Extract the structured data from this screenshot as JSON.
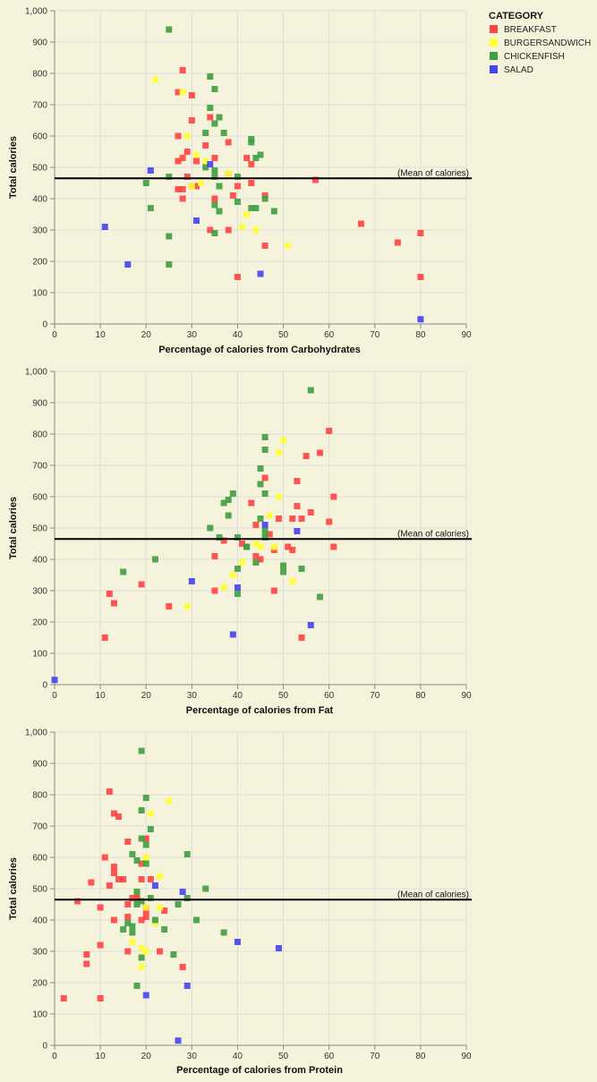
{
  "legend": {
    "title": "CATEGORY",
    "items": [
      {
        "label": "BREAKFAST",
        "color": "#ff4444"
      },
      {
        "label": "BURGERSANDWICH",
        "color": "#ffff33"
      },
      {
        "label": "CHICKENFISH",
        "color": "#3f9f3f"
      },
      {
        "label": "SALAD",
        "color": "#4444ee"
      }
    ]
  },
  "chart_data": [
    {
      "type": "scatter",
      "xlabel": "Percentage of calories from Carbohydrates",
      "ylabel": "Total calories",
      "xlim": [
        0,
        90
      ],
      "ylim": [
        0,
        1000
      ],
      "x_ticks": [
        "0",
        "10",
        "20",
        "30",
        "40",
        "50",
        "60",
        "70",
        "80",
        "90"
      ],
      "y_ticks": [
        "0",
        "100",
        "200",
        "300",
        "400",
        "500",
        "600",
        "700",
        "800",
        "900",
        "1,000"
      ],
      "grid": true,
      "mean_line": {
        "y": 465,
        "label": "(Mean of calories)"
      },
      "series": [
        {
          "name": "BREAKFAST",
          "points": [
            [
              28,
              810
            ],
            [
              27,
              740
            ],
            [
              30,
              730
            ],
            [
              34,
              660
            ],
            [
              30,
              650
            ],
            [
              27,
              600
            ],
            [
              38,
              580
            ],
            [
              33,
              570
            ],
            [
              29,
              550
            ],
            [
              42,
              530
            ],
            [
              31,
              520
            ],
            [
              28,
              530
            ],
            [
              27,
              520
            ],
            [
              35,
              530
            ],
            [
              43,
              510
            ],
            [
              38,
              480
            ],
            [
              29,
              470
            ],
            [
              27,
              430
            ],
            [
              28,
              430
            ],
            [
              31,
              440
            ],
            [
              30,
              440
            ],
            [
              46,
              410
            ],
            [
              39,
              410
            ],
            [
              28,
              400
            ],
            [
              35,
              400
            ],
            [
              40,
              440
            ],
            [
              43,
              450
            ],
            [
              57,
              460
            ],
            [
              38,
              300
            ],
            [
              34,
              300
            ],
            [
              46,
              250
            ],
            [
              67,
              320
            ],
            [
              75,
              260
            ],
            [
              40,
              150
            ],
            [
              80,
              290
            ],
            [
              80,
              150
            ]
          ]
        },
        {
          "name": "BURGERSANDWICH",
          "points": [
            [
              22,
              780
            ],
            [
              28,
              740
            ],
            [
              29,
              600
            ],
            [
              31,
              540
            ],
            [
              33,
              520
            ],
            [
              38,
              480
            ],
            [
              32,
              450
            ],
            [
              30,
              440
            ],
            [
              42,
              350
            ],
            [
              44,
              300
            ],
            [
              51,
              250
            ],
            [
              41,
              310
            ]
          ]
        },
        {
          "name": "CHICKENFISH",
          "points": [
            [
              25,
              940
            ],
            [
              34,
              790
            ],
            [
              35,
              750
            ],
            [
              34,
              690
            ],
            [
              36,
              660
            ],
            [
              35,
              640
            ],
            [
              37,
              610
            ],
            [
              33,
              610
            ],
            [
              43,
              590
            ],
            [
              43,
              580
            ],
            [
              45,
              540
            ],
            [
              44,
              530
            ],
            [
              33,
              500
            ],
            [
              35,
              490
            ],
            [
              35,
              470
            ],
            [
              25,
              470
            ],
            [
              36,
              440
            ],
            [
              40,
              470
            ],
            [
              20,
              450
            ],
            [
              21,
              370
            ],
            [
              35,
              380
            ],
            [
              36,
              360
            ],
            [
              40,
              390
            ],
            [
              43,
              370
            ],
            [
              44,
              370
            ],
            [
              46,
              400
            ],
            [
              48,
              360
            ],
            [
              35,
              290
            ],
            [
              25,
              280
            ],
            [
              25,
              190
            ]
          ]
        },
        {
          "name": "SALAD",
          "points": [
            [
              21,
              490
            ],
            [
              34,
              510
            ],
            [
              31,
              330
            ],
            [
              11,
              310
            ],
            [
              16,
              190
            ],
            [
              45,
              160
            ],
            [
              80,
              15
            ]
          ]
        }
      ]
    },
    {
      "type": "scatter",
      "xlabel": "Percentage of calories from Fat",
      "ylabel": "Total calories",
      "xlim": [
        0,
        90
      ],
      "ylim": [
        0,
        1000
      ],
      "x_ticks": [
        "0",
        "10",
        "20",
        "30",
        "40",
        "50",
        "60",
        "70",
        "80",
        "90"
      ],
      "y_ticks": [
        "0",
        "100",
        "200",
        "300",
        "400",
        "500",
        "600",
        "700",
        "800",
        "900",
        "1,000"
      ],
      "grid": true,
      "mean_line": {
        "y": 465,
        "label": "(Mean of calories)"
      },
      "series": [
        {
          "name": "BREAKFAST",
          "points": [
            [
              60,
              810
            ],
            [
              58,
              740
            ],
            [
              55,
              730
            ],
            [
              46,
              660
            ],
            [
              53,
              650
            ],
            [
              61,
              600
            ],
            [
              43,
              580
            ],
            [
              53,
              570
            ],
            [
              56,
              550
            ],
            [
              49,
              530
            ],
            [
              52,
              530
            ],
            [
              54,
              530
            ],
            [
              60,
              520
            ],
            [
              44,
              510
            ],
            [
              47,
              480
            ],
            [
              51,
              440
            ],
            [
              52,
              430
            ],
            [
              61,
              440
            ],
            [
              48,
              430
            ],
            [
              44,
              410
            ],
            [
              41,
              450
            ],
            [
              37,
              460
            ],
            [
              45,
              400
            ],
            [
              54,
              150
            ],
            [
              48,
              300
            ],
            [
              35,
              410
            ],
            [
              19,
              320
            ],
            [
              12,
              290
            ],
            [
              13,
              260
            ],
            [
              25,
              250
            ],
            [
              11,
              150
            ],
            [
              35,
              300
            ]
          ]
        },
        {
          "name": "BURGERSANDWICH",
          "points": [
            [
              50,
              780
            ],
            [
              49,
              740
            ],
            [
              49,
              600
            ],
            [
              47,
              540
            ],
            [
              45,
              440
            ],
            [
              44,
              450
            ],
            [
              41,
              390
            ],
            [
              39,
              350
            ],
            [
              37,
              310
            ],
            [
              29,
              250
            ],
            [
              52,
              330
            ],
            [
              48,
              440
            ]
          ]
        },
        {
          "name": "CHICKENFISH",
          "points": [
            [
              56,
              940
            ],
            [
              46,
              790
            ],
            [
              46,
              750
            ],
            [
              45,
              690
            ],
            [
              45,
              640
            ],
            [
              46,
              610
            ],
            [
              39,
              610
            ],
            [
              38,
              590
            ],
            [
              37,
              580
            ],
            [
              38,
              540
            ],
            [
              45,
              530
            ],
            [
              34,
              500
            ],
            [
              46,
              490
            ],
            [
              46,
              470
            ],
            [
              40,
              470
            ],
            [
              36,
              470
            ],
            [
              42,
              440
            ],
            [
              40,
              370
            ],
            [
              44,
              390
            ],
            [
              50,
              380
            ],
            [
              50,
              360
            ],
            [
              54,
              370
            ],
            [
              22,
              400
            ],
            [
              15,
              360
            ],
            [
              40,
              290
            ],
            [
              58,
              280
            ],
            [
              42,
              440
            ]
          ]
        },
        {
          "name": "SALAD",
          "points": [
            [
              46,
              510
            ],
            [
              53,
              490
            ],
            [
              30,
              330
            ],
            [
              40,
              310
            ],
            [
              56,
              190
            ],
            [
              39,
              160
            ],
            [
              0,
              15
            ]
          ]
        }
      ]
    },
    {
      "type": "scatter",
      "xlabel": "Percentage of calories from Protein",
      "ylabel": "Total calories",
      "xlim": [
        0,
        90
      ],
      "ylim": [
        0,
        1000
      ],
      "x_ticks": [
        "0",
        "10",
        "20",
        "30",
        "40",
        "50",
        "60",
        "70",
        "80",
        "90"
      ],
      "y_ticks": [
        "0",
        "100",
        "200",
        "300",
        "400",
        "500",
        "600",
        "700",
        "800",
        "900",
        "1,000"
      ],
      "grid": true,
      "mean_line": {
        "y": 465,
        "label": "(Mean of calories)"
      },
      "series": [
        {
          "name": "BREAKFAST",
          "points": [
            [
              12,
              810
            ],
            [
              13,
              740
            ],
            [
              14,
              730
            ],
            [
              20,
              660
            ],
            [
              16,
              650
            ],
            [
              11,
              600
            ],
            [
              8,
              520
            ],
            [
              13,
              570
            ],
            [
              13,
              550
            ],
            [
              15,
              530
            ],
            [
              14,
              530
            ],
            [
              12,
              510
            ],
            [
              19,
              580
            ],
            [
              19,
              530
            ],
            [
              21,
              530
            ],
            [
              18,
              470
            ],
            [
              17,
              470
            ],
            [
              16,
              450
            ],
            [
              10,
              440
            ],
            [
              13,
              400
            ],
            [
              5,
              460
            ],
            [
              16,
              410
            ],
            [
              19,
              400
            ],
            [
              20,
              410
            ],
            [
              20,
              430
            ],
            [
              24,
              430
            ],
            [
              10,
              320
            ],
            [
              16,
              300
            ],
            [
              23,
              300
            ],
            [
              7,
              290
            ],
            [
              7,
              260
            ],
            [
              28,
              250
            ],
            [
              2,
              150
            ],
            [
              10,
              150
            ],
            [
              18,
              480
            ],
            [
              20,
              440
            ]
          ]
        },
        {
          "name": "BURGERSANDWICH",
          "points": [
            [
              25,
              780
            ],
            [
              21,
              740
            ],
            [
              20,
              600
            ],
            [
              23,
              540
            ],
            [
              18,
              490
            ],
            [
              20,
              440
            ],
            [
              23,
              440
            ],
            [
              22,
              390
            ],
            [
              17,
              330
            ],
            [
              19,
              310
            ],
            [
              20,
              300
            ],
            [
              19,
              250
            ]
          ]
        },
        {
          "name": "CHICKENFISH",
          "points": [
            [
              19,
              940
            ],
            [
              20,
              790
            ],
            [
              19,
              750
            ],
            [
              21,
              690
            ],
            [
              19,
              660
            ],
            [
              20,
              640
            ],
            [
              29,
              610
            ],
            [
              17,
              610
            ],
            [
              18,
              590
            ],
            [
              20,
              580
            ],
            [
              33,
              500
            ],
            [
              18,
              490
            ],
            [
              21,
              470
            ],
            [
              29,
              470
            ],
            [
              27,
              450
            ],
            [
              19,
              460
            ],
            [
              18,
              450
            ],
            [
              17,
              380
            ],
            [
              15,
              370
            ],
            [
              16,
              390
            ],
            [
              17,
              360
            ],
            [
              22,
              400
            ],
            [
              31,
              400
            ],
            [
              24,
              370
            ],
            [
              37,
              360
            ],
            [
              26,
              290
            ],
            [
              19,
              280
            ],
            [
              18,
              190
            ]
          ]
        },
        {
          "name": "SALAD",
          "points": [
            [
              28,
              490
            ],
            [
              22,
              510
            ],
            [
              40,
              330
            ],
            [
              49,
              310
            ],
            [
              29,
              190
            ],
            [
              20,
              160
            ],
            [
              27,
              15
            ]
          ]
        }
      ]
    }
  ]
}
